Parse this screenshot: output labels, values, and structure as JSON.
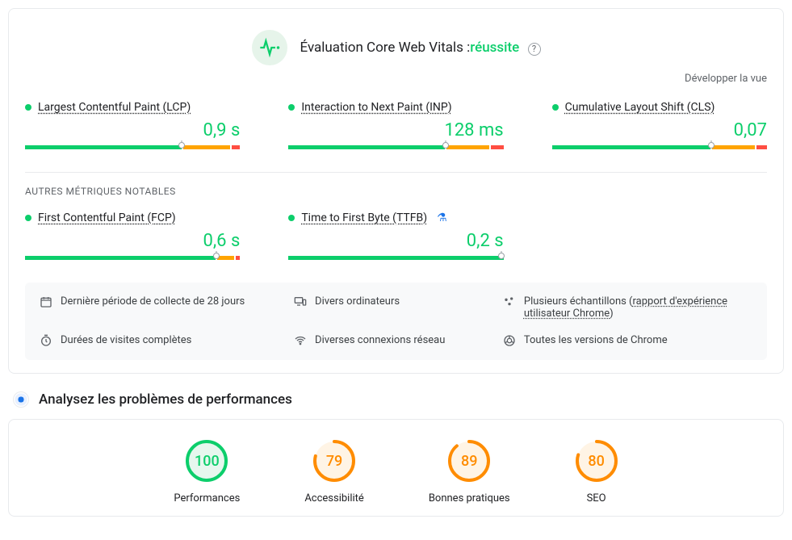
{
  "header": {
    "title_prefix": "Évaluation Core Web Vitals :",
    "status": "réussite",
    "expand": "Développer la vue"
  },
  "colors": {
    "green": "#0cce6b",
    "orange": "#ffa400",
    "red": "#ff4e42"
  },
  "metrics_primary": [
    {
      "name": "Largest Contentful Paint (LCP)",
      "value": "0,9 s",
      "segments": [
        74,
        22,
        4
      ],
      "marker_pct": 73
    },
    {
      "name": "Interaction to Next Paint (INP)",
      "value": "128 ms",
      "segments": [
        74,
        20,
        6
      ],
      "marker_pct": 73
    },
    {
      "name": "Cumulative Layout Shift (CLS)",
      "value": "0,07",
      "segments": [
        75,
        20,
        5
      ],
      "marker_pct": 74
    }
  ],
  "subhead": "AUTRES MÉTRIQUES NOTABLES",
  "metrics_secondary": [
    {
      "name": "First Contentful Paint (FCP)",
      "value": "0,6 s",
      "segments": [
        90,
        8,
        2
      ],
      "marker_pct": 89,
      "experimental": false
    },
    {
      "name": "Time to First Byte (TTFB)",
      "value": "0,2 s",
      "segments": [
        100,
        0,
        0
      ],
      "marker_pct": 99,
      "experimental": true
    }
  ],
  "info": {
    "period": "Dernière période de collecte de 28 jours",
    "devices": "Divers ordinateurs",
    "samples_prefix": "Plusieurs échantillons (",
    "samples_link": "rapport d'expérience utilisateur Chrome",
    "samples_suffix": ")",
    "visits": "Durées de visites complètes",
    "network": "Diverses connexions réseau",
    "chrome": "Toutes les versions de Chrome"
  },
  "section": {
    "title": "Analysez les problèmes de performances"
  },
  "gauges": [
    {
      "score": 100,
      "label": "Performances",
      "color": "#0cce6b",
      "fill": "#e6f7ee"
    },
    {
      "score": 79,
      "label": "Accessibilité",
      "color": "#ff8c00",
      "fill": "#fff4e5"
    },
    {
      "score": 89,
      "label": "Bonnes pratiques",
      "color": "#ff8c00",
      "fill": "#fff4e5"
    },
    {
      "score": 80,
      "label": "SEO",
      "color": "#ff8c00",
      "fill": "#fff4e5"
    }
  ]
}
